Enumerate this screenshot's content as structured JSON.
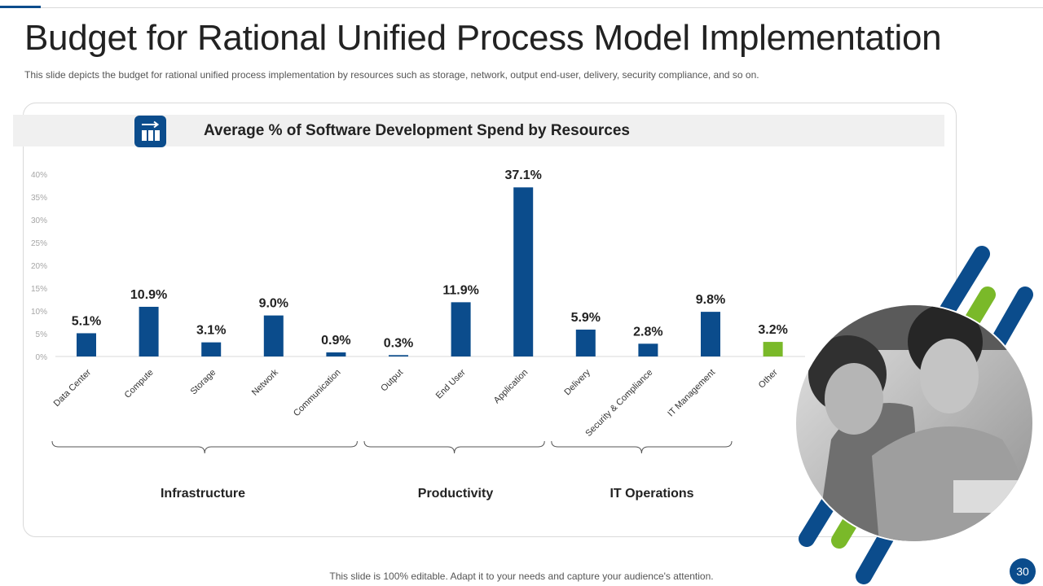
{
  "slide": {
    "title": "Budget for Rational Unified Process Model Implementation",
    "subtitle": "This slide depicts the budget for rational unified process implementation by resources such as storage, network, output end-user, delivery, security compliance, and so on.",
    "footer_note": "This slide is 100% editable. Adapt it to your needs and capture your audience's attention.",
    "page_number": "30"
  },
  "colors": {
    "primary": "#0b4c8c",
    "accent": "#7ab929",
    "grid_text": "#a6a6a6"
  },
  "chart_data": {
    "type": "bar",
    "title": "Average % of Software Development Spend by Resources",
    "categories": [
      "Data Center",
      "Compute",
      "Storage",
      "Network",
      "Communication",
      "Output",
      "End User",
      "Application",
      "Delivery",
      "Security & Compliance",
      "IT Management",
      "Other"
    ],
    "values": [
      5.1,
      10.9,
      3.1,
      9.0,
      0.9,
      0.3,
      11.9,
      37.1,
      5.9,
      2.8,
      9.8,
      3.2
    ],
    "value_labels": [
      "5.1%",
      "10.9%",
      "3.1%",
      "9.0%",
      "0.9%",
      "0.3%",
      "11.9%",
      "37.1%",
      "5.9%",
      "2.8%",
      "9.8%",
      "3.2%"
    ],
    "highlight_colors": [
      "#0b4c8c",
      "#0b4c8c",
      "#0b4c8c",
      "#0b4c8c",
      "#0b4c8c",
      "#0b4c8c",
      "#0b4c8c",
      "#0b4c8c",
      "#0b4c8c",
      "#0b4c8c",
      "#0b4c8c",
      "#7ab929"
    ],
    "yticks": [
      "0%",
      "5%",
      "10%",
      "15%",
      "20%",
      "25%",
      "30%",
      "35%",
      "40%"
    ],
    "ylim": [
      0,
      40
    ],
    "xlabel": "",
    "ylabel": "",
    "grid": false,
    "groups": [
      {
        "label": "Infrastructure",
        "first": 0,
        "last": 4
      },
      {
        "label": "Productivity",
        "first": 5,
        "last": 7
      },
      {
        "label": "IT Operations",
        "first": 8,
        "last": 10
      }
    ]
  }
}
